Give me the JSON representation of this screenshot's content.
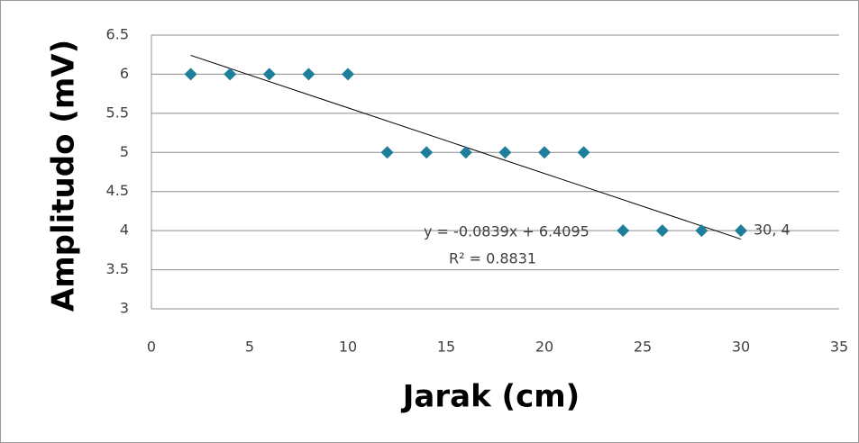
{
  "chart_data": {
    "type": "scatter",
    "x_label": "Jarak (cm)",
    "y_label": "Amplitudo (mV)",
    "x": [
      2,
      4,
      6,
      8,
      10,
      12,
      14,
      16,
      18,
      20,
      22,
      24,
      26,
      28,
      30
    ],
    "series": [
      {
        "color": "#1f7f9a",
        "values": [
          6,
          6,
          6,
          6,
          6,
          5,
          5,
          5,
          5,
          5,
          5,
          4,
          4,
          4,
          4
        ]
      }
    ],
    "xlim": [
      0,
      35
    ],
    "xticks": [
      0,
      5,
      10,
      15,
      20,
      25,
      30,
      35
    ],
    "ylim": [
      3,
      6.5
    ],
    "yticks": [
      3,
      3.5,
      4,
      4.5,
      5,
      5.5,
      6,
      6.5
    ],
    "grid": true,
    "trendline": {
      "type": "linear",
      "color": "#000000",
      "equation": "y = -0.0839x + 6.4095",
      "r_squared": "R² = 0.8831"
    },
    "point_label": "30, 4"
  }
}
